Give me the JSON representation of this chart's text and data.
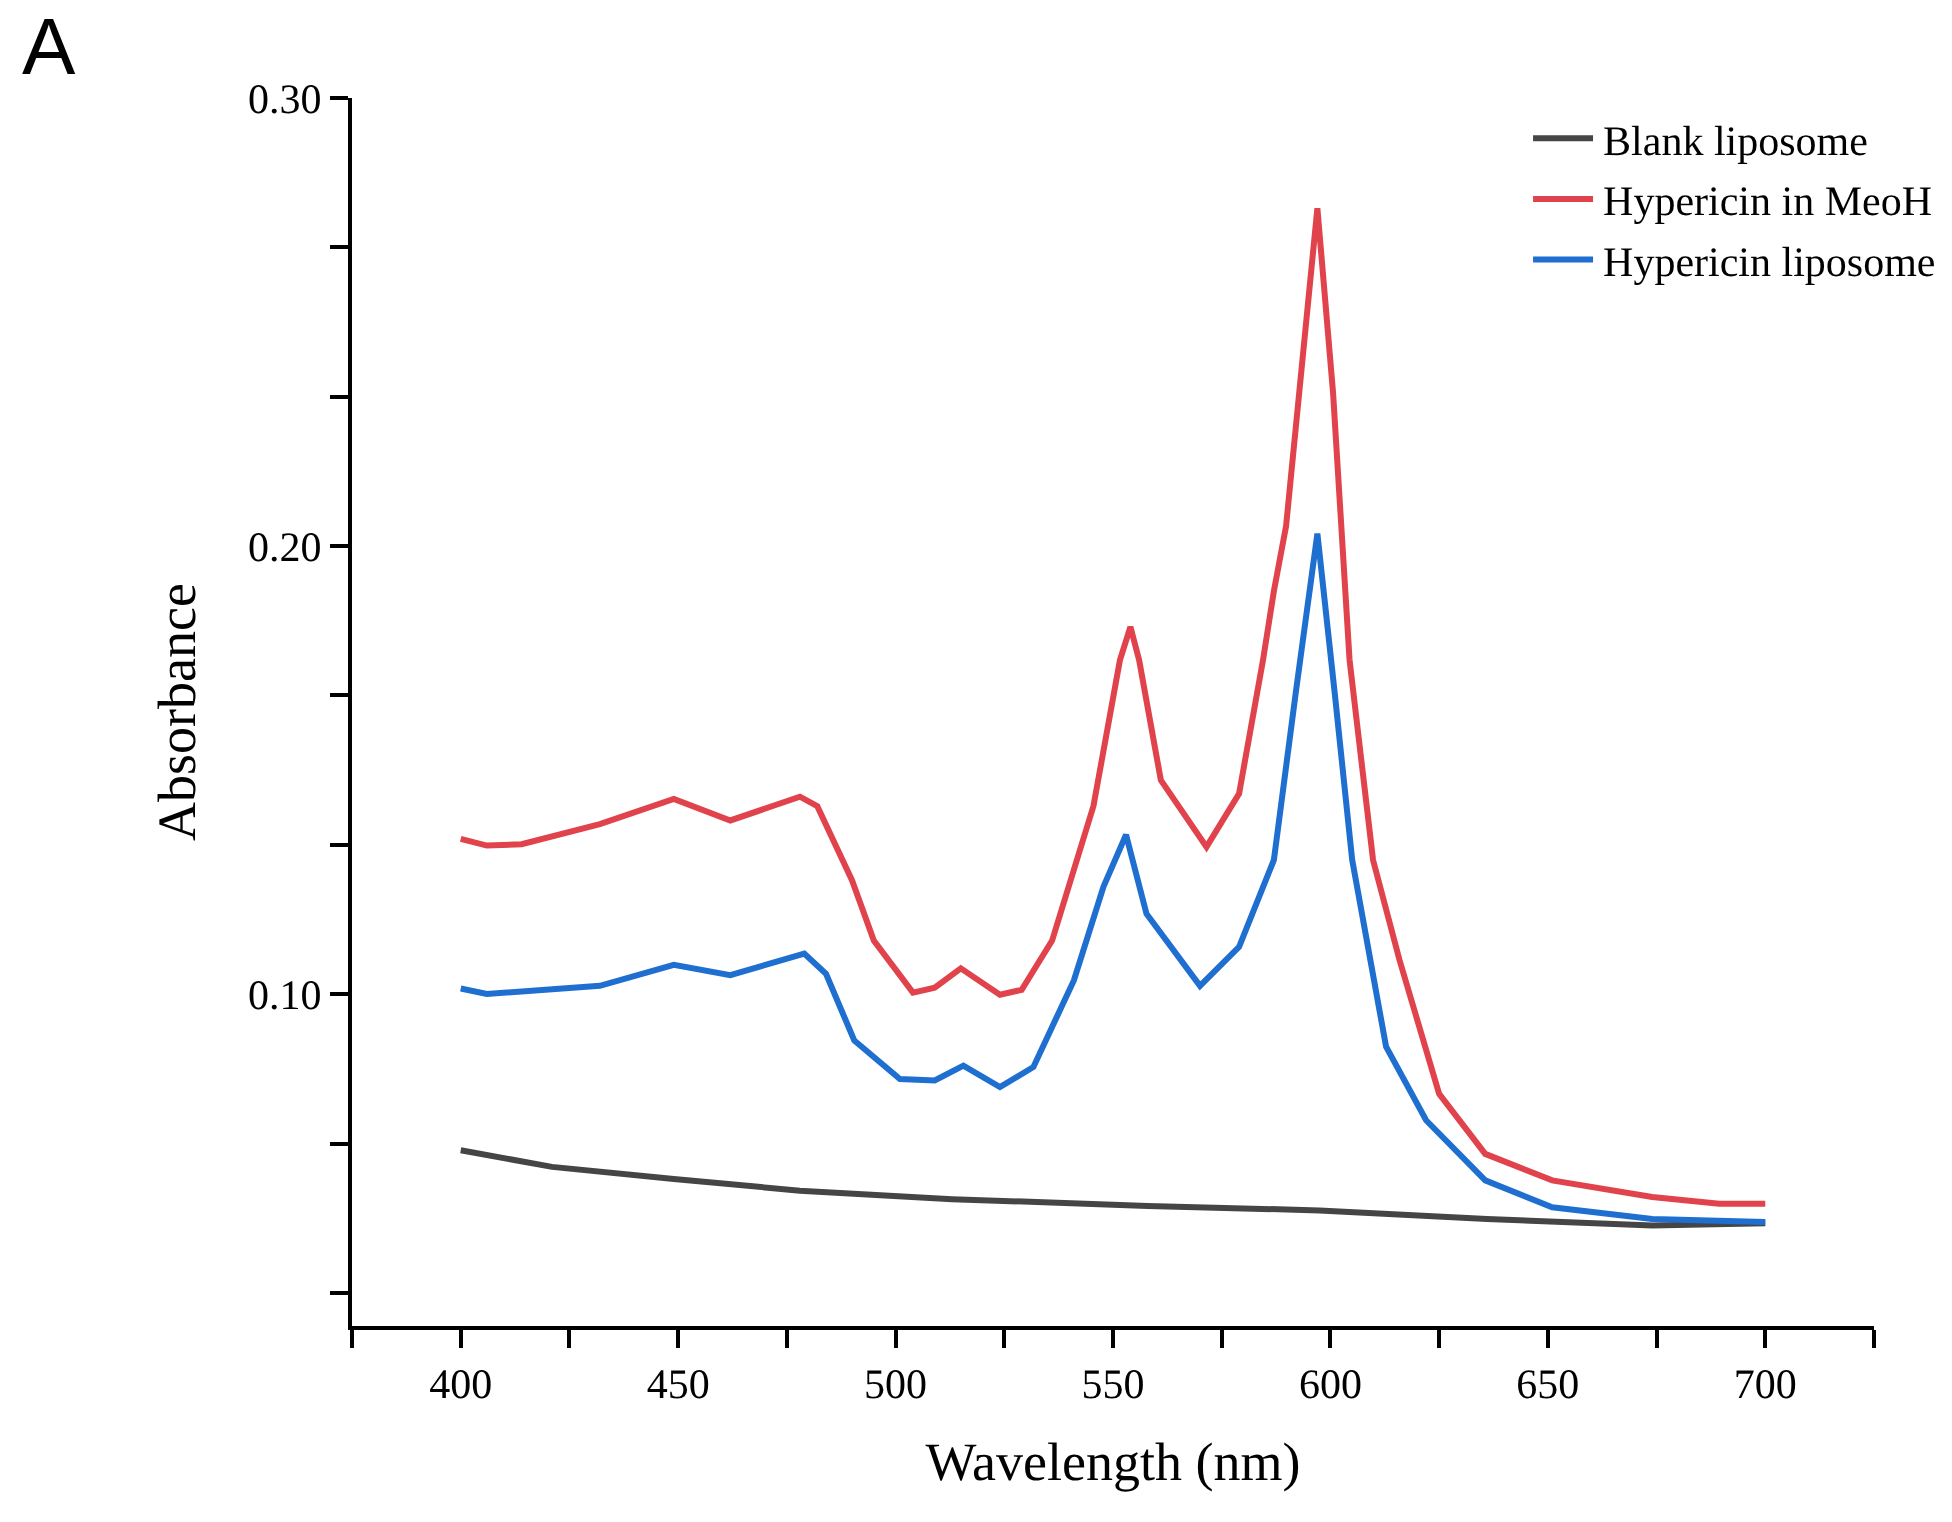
{
  "chart_data": {
    "type": "line",
    "xlabel": "Wavelength (nm)",
    "ylabel": "Absorbance",
    "annotations": [
      "A"
    ],
    "legend": "top right",
    "line_style": "solid",
    "xlim": [
      375,
      725
    ],
    "xticks": [
      {
        "value": 375,
        "label": null
      },
      {
        "value": 400,
        "label": "400"
      },
      {
        "value": 425,
        "label": null
      },
      {
        "value": 450,
        "label": "450"
      },
      {
        "value": 475,
        "label": null
      },
      {
        "value": 500,
        "label": "500"
      },
      {
        "value": 525,
        "label": null
      },
      {
        "value": 550,
        "label": "550"
      },
      {
        "value": 575,
        "label": null
      },
      {
        "value": 600,
        "label": "600"
      },
      {
        "value": 625,
        "label": null
      },
      {
        "value": 650,
        "label": "650"
      },
      {
        "value": 675,
        "label": null
      },
      {
        "value": 700,
        "label": "700"
      },
      {
        "value": 725,
        "label": null
      }
    ],
    "ylim": [
      0.026,
      0.3
    ],
    "yticks": [
      {
        "value": 0.0333,
        "label": null
      },
      {
        "value": 0.0667,
        "label": null
      },
      {
        "value": 0.1,
        "label": "0.10"
      },
      {
        "value": 0.1333,
        "label": null
      },
      {
        "value": 0.1667,
        "label": null
      },
      {
        "value": 0.2,
        "label": "0.20"
      },
      {
        "value": 0.2333,
        "label": null
      },
      {
        "value": 0.2667,
        "label": null
      },
      {
        "value": 0.3,
        "label": "0.30"
      }
    ],
    "series": [
      {
        "name": "Blank liposome",
        "color": "#454545",
        "x": [
          400,
          421,
          449,
          478,
          513,
          558,
          597.5,
          636,
          674,
          700
        ],
        "values": [
          0.0652,
          0.0615,
          0.0588,
          0.0562,
          0.0543,
          0.0528,
          0.0518,
          0.0499,
          0.0484,
          0.0489
        ]
      },
      {
        "name": "Hypericin in MeoH",
        "color": "#e0434b",
        "x": [
          400,
          406,
          414,
          432,
          449,
          462,
          478,
          482,
          490,
          495,
          504,
          509,
          515,
          524,
          529,
          536,
          545.5,
          551.6,
          554,
          556,
          561,
          571.5,
          579,
          584.5,
          587,
          589.8,
          597,
          600.6,
          604.4,
          609.8,
          615.9,
          625,
          635.6,
          651,
          674,
          689.4,
          700
        ],
        "values": [
          0.1347,
          0.1332,
          0.1335,
          0.138,
          0.1436,
          0.1388,
          0.1441,
          0.142,
          0.1254,
          0.112,
          0.1004,
          0.1015,
          0.1058,
          0.0999,
          0.101,
          0.112,
          0.142,
          0.1746,
          0.182,
          0.1746,
          0.1478,
          0.1329,
          0.1448,
          0.1746,
          0.19,
          0.2045,
          0.2754,
          0.2343,
          0.1746,
          0.13,
          0.1076,
          0.0778,
          0.0644,
          0.0585,
          0.0548,
          0.0533,
          0.0533
        ]
      },
      {
        "name": "Hypericin liposome",
        "color": "#1f6fd1",
        "x": [
          400,
          406,
          432,
          449,
          462,
          479,
          484,
          490.5,
          501,
          509,
          515.6,
          524,
          531.7,
          541,
          547.8,
          553,
          557.7,
          570,
          579,
          587,
          592,
          597,
          601,
          605,
          612.8,
          622,
          635.6,
          651,
          674,
          700
        ],
        "values": [
          0.1013,
          0.1001,
          0.1019,
          0.1066,
          0.1043,
          0.1091,
          0.1046,
          0.0897,
          0.0811,
          0.0808,
          0.0841,
          0.0793,
          0.0838,
          0.1031,
          0.124,
          0.1356,
          0.118,
          0.1019,
          0.1106,
          0.13,
          0.1671,
          0.2028,
          0.1671,
          0.13,
          0.0883,
          0.0719,
          0.0585,
          0.0525,
          0.0499,
          0.0492
        ]
      }
    ]
  }
}
